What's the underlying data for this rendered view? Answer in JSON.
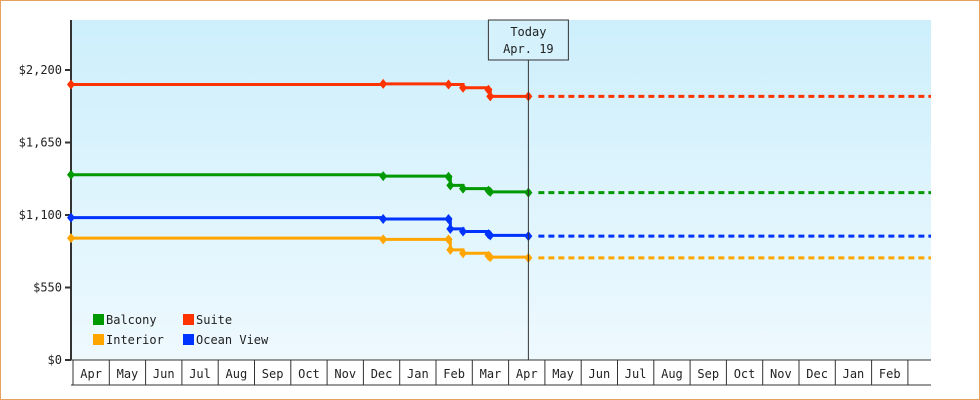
{
  "chart_data": {
    "type": "line",
    "title": "",
    "xlabel": "",
    "ylabel": "",
    "ylim": [
      0,
      2640
    ],
    "yticks": [
      {
        "value": 0,
        "label": "$0"
      },
      {
        "value": 550,
        "label": "$550"
      },
      {
        "value": 1100,
        "label": "$1,100"
      },
      {
        "value": 1650,
        "label": "$1,650"
      },
      {
        "value": 2200,
        "label": "$2,200"
      }
    ],
    "xticks": [
      "Apr",
      "May",
      "Jun",
      "Jul",
      "Aug",
      "Sep",
      "Oct",
      "Nov",
      "Dec",
      "Jan",
      "Feb",
      "Mar",
      "Apr",
      "May",
      "Jun",
      "Jul",
      "Aug",
      "Sep",
      "Oct",
      "Nov",
      "Dec",
      "Jan",
      "Feb"
    ],
    "today_marker": {
      "line1": "Today",
      "line2": "Apr. 19",
      "month_index": 12.6
    },
    "legend": [
      {
        "name": "Balcony",
        "color": "#009900"
      },
      {
        "name": "Suite",
        "color": "#ff3300"
      },
      {
        "name": "Interior",
        "color": "#ffa500"
      },
      {
        "name": "Ocean View",
        "color": "#0033ff"
      }
    ],
    "series": [
      {
        "name": "Suite",
        "color": "#ff3300",
        "points": [
          [
            0,
            2090
          ],
          [
            8.6,
            2095
          ],
          [
            10.4,
            2090
          ],
          [
            10.8,
            2065
          ],
          [
            11.5,
            2050
          ],
          [
            11.55,
            2000
          ],
          [
            12.6,
            2000
          ]
        ],
        "projection": 2000
      },
      {
        "name": "Balcony",
        "color": "#009900",
        "points": [
          [
            0,
            1405
          ],
          [
            8.6,
            1395
          ],
          [
            10.4,
            1390
          ],
          [
            10.45,
            1325
          ],
          [
            10.8,
            1300
          ],
          [
            11.5,
            1285
          ],
          [
            11.55,
            1275
          ],
          [
            12.6,
            1270
          ]
        ],
        "projection": 1270
      },
      {
        "name": "Ocean View",
        "color": "#0033ff",
        "points": [
          [
            0,
            1080
          ],
          [
            8.6,
            1070
          ],
          [
            10.4,
            1070
          ],
          [
            10.45,
            995
          ],
          [
            10.8,
            975
          ],
          [
            11.5,
            955
          ],
          [
            11.55,
            945
          ],
          [
            12.6,
            940
          ]
        ],
        "projection": 940
      },
      {
        "name": "Interior",
        "color": "#ffa500",
        "points": [
          [
            0,
            925
          ],
          [
            8.6,
            915
          ],
          [
            10.4,
            915
          ],
          [
            10.45,
            835
          ],
          [
            10.8,
            810
          ],
          [
            11.5,
            790
          ],
          [
            11.55,
            780
          ],
          [
            12.6,
            775
          ]
        ],
        "projection": 775
      }
    ]
  }
}
